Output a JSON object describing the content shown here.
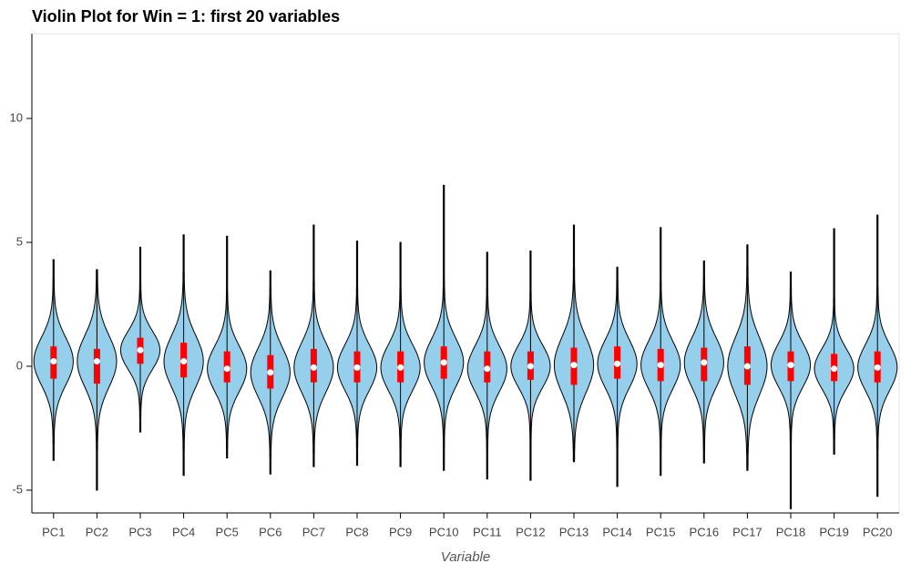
{
  "chart_data": {
    "type": "violin",
    "title": "Violin Plot for Win = 1: first 20 variables",
    "x_label": "Variable",
    "categories": [
      "PC1",
      "PC2",
      "PC3",
      "PC4",
      "PC5",
      "PC6",
      "PC7",
      "PC8",
      "PC9",
      "PC10",
      "PC11",
      "PC12",
      "PC13",
      "PC14",
      "PC15",
      "PC16",
      "PC17",
      "PC18",
      "PC19",
      "PC20"
    ],
    "min": [
      -3.8,
      -5.0,
      -2.65,
      -4.4,
      -3.7,
      -4.35,
      -4.05,
      -4.0,
      -4.05,
      -4.2,
      -4.55,
      -4.6,
      -3.85,
      -4.85,
      -4.4,
      -3.9,
      -4.2,
      -5.75,
      -3.55,
      -5.25
    ],
    "q1": [
      -0.5,
      -0.7,
      0.1,
      -0.45,
      -0.65,
      -0.9,
      -0.65,
      -0.65,
      -0.65,
      -0.5,
      -0.65,
      -0.55,
      -0.75,
      -0.5,
      -0.6,
      -0.6,
      -0.75,
      -0.6,
      -0.6,
      -0.65
    ],
    "median": [
      0.2,
      0.2,
      0.65,
      0.2,
      -0.1,
      -0.25,
      -0.05,
      -0.05,
      -0.05,
      0.15,
      -0.1,
      0.0,
      0.05,
      0.1,
      0.05,
      0.15,
      0.0,
      0.05,
      -0.1,
      -0.05
    ],
    "q3": [
      0.8,
      0.7,
      1.15,
      0.95,
      0.6,
      0.45,
      0.7,
      0.6,
      0.6,
      0.8,
      0.6,
      0.6,
      0.75,
      0.8,
      0.7,
      0.75,
      0.8,
      0.6,
      0.5,
      0.6
    ],
    "max": [
      4.3,
      3.9,
      4.8,
      5.3,
      5.25,
      3.85,
      5.7,
      5.05,
      5.0,
      7.3,
      4.6,
      4.65,
      5.7,
      4.0,
      5.6,
      4.25,
      4.9,
      3.8,
      5.55,
      6.1
    ],
    "color": "#95cfec",
    "box_color": "#ff0000",
    "median_color": "#ffffff",
    "ylim": [
      -5.92,
      13.42
    ],
    "yticks": [
      -5,
      0,
      5,
      10
    ]
  }
}
